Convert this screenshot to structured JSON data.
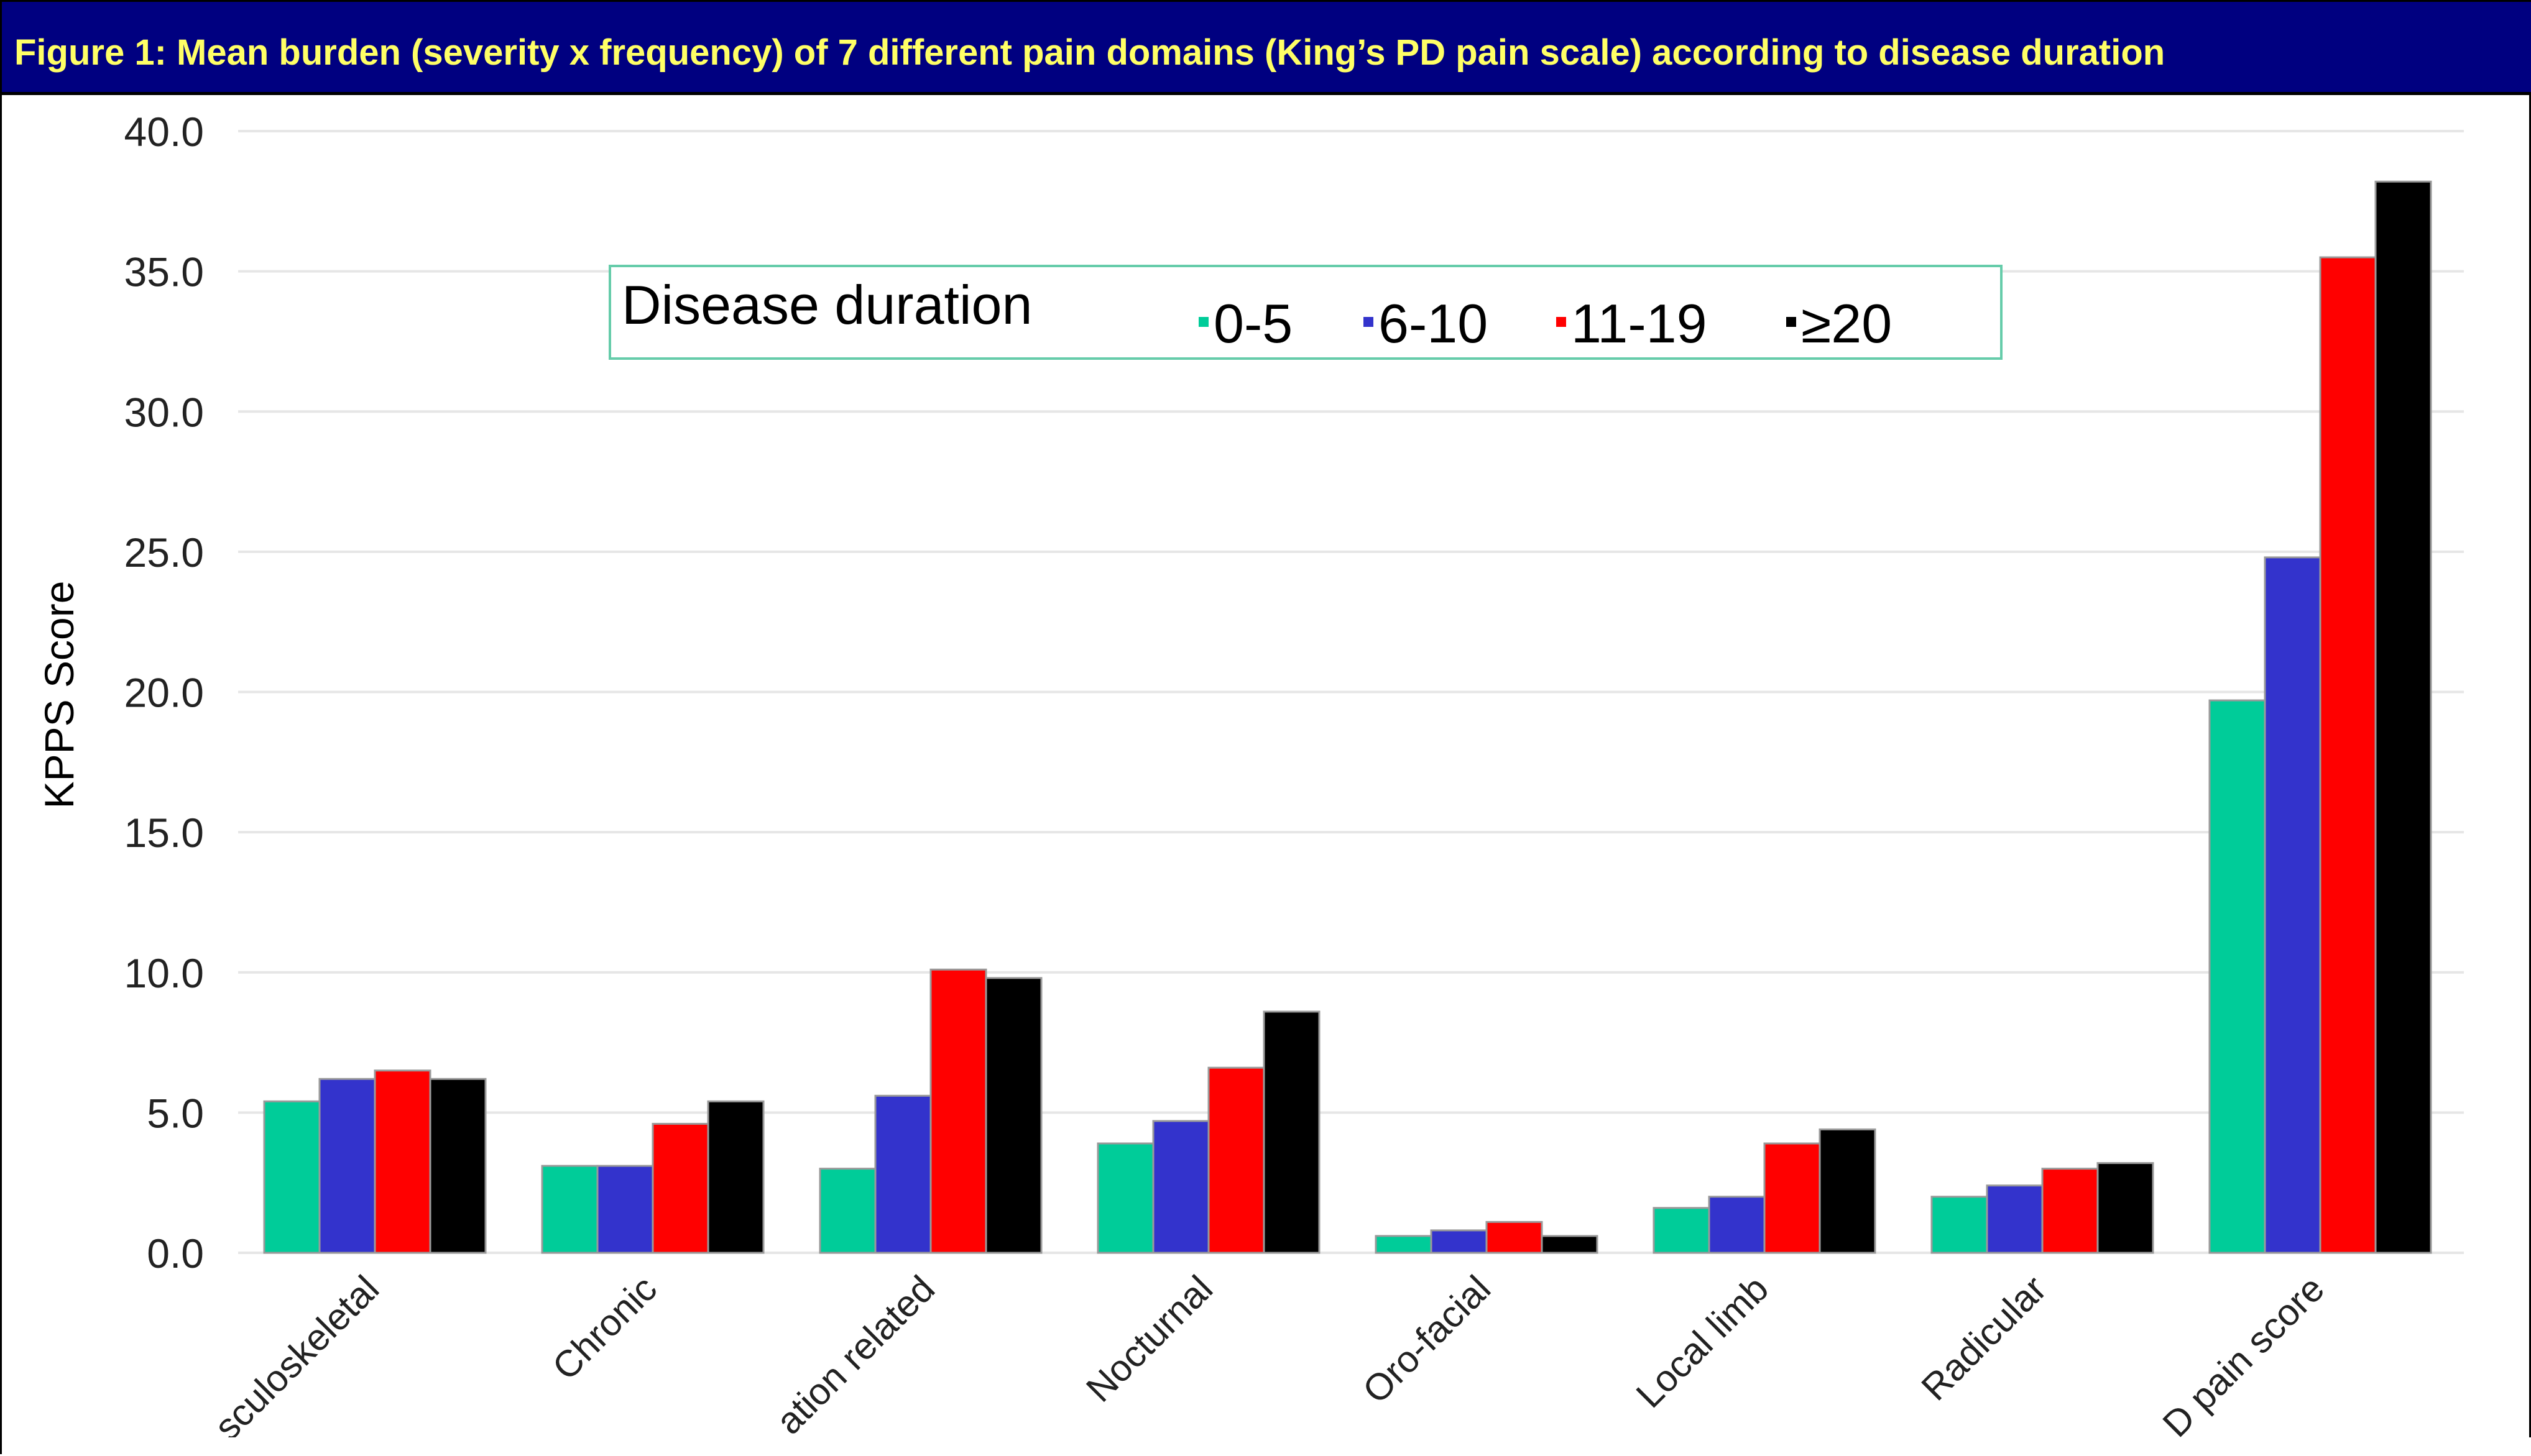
{
  "title": "Figure 1: Mean burden (severity x frequency) of 7 different pain domains (King’s PD pain scale) according to disease duration",
  "colors": {
    "title_bg": "#000080",
    "title_text": "#ffff66",
    "legend_border": "#66ccaa",
    "grid": "#e6e6e6"
  },
  "chart_data": {
    "type": "bar",
    "ylabel": "KPPS Score",
    "ylim": [
      0,
      40
    ],
    "yticks": [
      "0.0",
      "5.0",
      "10.0",
      "15.0",
      "20.0",
      "25.0",
      "30.0",
      "35.0",
      "40.0"
    ],
    "grid": true,
    "legend_position": "top-center",
    "legend_title": "Disease duration",
    "categories": [
      "sculoskeletal",
      "Chronic",
      "ation related",
      "Nocturnal",
      "Oro-facial",
      "Local limb",
      "Radicular",
      "D pain score"
    ],
    "series": [
      {
        "name": "0-5",
        "color": "#00cc99",
        "values": [
          5.4,
          3.1,
          3.0,
          3.9,
          0.6,
          1.6,
          2.0,
          19.7
        ]
      },
      {
        "name": "6-10",
        "color": "#3333cc",
        "values": [
          6.2,
          3.1,
          5.6,
          4.7,
          0.8,
          2.0,
          2.4,
          24.8
        ]
      },
      {
        "name": "11-19",
        "color": "#ff0000",
        "values": [
          6.5,
          4.6,
          10.1,
          6.6,
          1.1,
          3.9,
          3.0,
          35.5
        ]
      },
      {
        "name": "≥20",
        "color": "#000000",
        "values": [
          6.2,
          5.4,
          9.8,
          8.6,
          0.6,
          4.4,
          3.2,
          38.2
        ]
      }
    ]
  }
}
